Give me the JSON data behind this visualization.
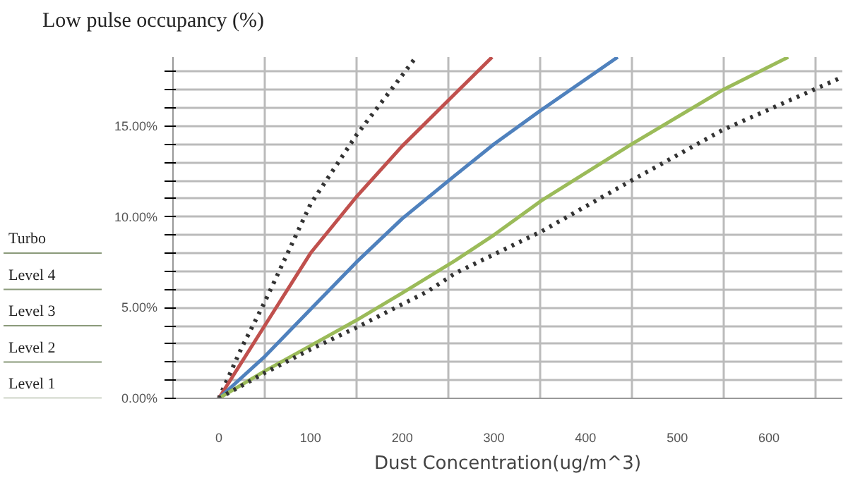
{
  "chart_data": {
    "type": "line",
    "title": "Low pulse occupancy (%)",
    "xlabel": "Dust Concentration(ug/m^3)",
    "xlim": [
      -50,
      680
    ],
    "ylim": [
      0,
      18.8
    ],
    "xticks": [
      0,
      100,
      200,
      300,
      400,
      500,
      600,
      {
        "value": 50,
        "label": null
      },
      {
        "value": 150,
        "label": null
      },
      {
        "value": 250,
        "label": null
      },
      {
        "value": 350,
        "label": null
      },
      {
        "value": 450,
        "label": null
      },
      {
        "value": 550,
        "label": null
      },
      {
        "value": 650,
        "label": null
      }
    ],
    "yticks": [
      {
        "value": 0,
        "label": "0.00%"
      },
      {
        "value": 5,
        "label": "5.00%"
      },
      {
        "value": 10,
        "label": "10.00%"
      },
      {
        "value": 15,
        "label": "15.00%"
      },
      {
        "value": 1,
        "label": null
      },
      {
        "value": 2,
        "label": null
      },
      {
        "value": 3,
        "label": null
      },
      {
        "value": 4,
        "label": null
      },
      {
        "value": 6,
        "label": null
      },
      {
        "value": 7,
        "label": null
      },
      {
        "value": 8,
        "label": null
      },
      {
        "value": 9,
        "label": null
      },
      {
        "value": 11,
        "label": null
      },
      {
        "value": 12,
        "label": null
      },
      {
        "value": 13,
        "label": null
      },
      {
        "value": 14,
        "label": null
      },
      {
        "value": 16,
        "label": null
      },
      {
        "value": 17,
        "label": null
      },
      {
        "value": 18,
        "label": null
      }
    ],
    "grid": true,
    "marker": "none",
    "ref_lines": [
      {
        "axis": "y",
        "value": 0,
        "label": "Level 1"
      },
      {
        "axis": "y",
        "value": 2,
        "label": "Level 2"
      },
      {
        "axis": "y",
        "value": 4,
        "label": "Level 3"
      },
      {
        "axis": "y",
        "value": 6,
        "label": "Level 4"
      },
      {
        "axis": "y",
        "value": 8,
        "label": "Turbo"
      }
    ],
    "series": [
      {
        "color": "#333333",
        "line_style": "dotted",
        "x": [
          0,
          25,
          50,
          100,
          150,
          200,
          215
        ],
        "values": [
          0,
          2.8,
          5.3,
          10.7,
          14.5,
          17.8,
          18.8
        ]
      },
      {
        "color": "#c0504d",
        "line_style": "solid",
        "x": [
          0,
          50,
          100,
          150,
          200,
          250,
          298
        ],
        "values": [
          0,
          4.0,
          8.0,
          11.1,
          13.9,
          16.4,
          18.8
        ]
      },
      {
        "color": "#4f81bd",
        "line_style": "solid",
        "x": [
          0,
          50,
          100,
          150,
          200,
          258,
          300,
          352,
          435
        ],
        "values": [
          0,
          2.3,
          4.9,
          7.5,
          9.9,
          12.3,
          14.0,
          15.9,
          18.8
        ]
      },
      {
        "color": "#9bbb59",
        "line_style": "solid",
        "x": [
          0,
          50,
          100,
          150,
          200,
          258,
          300,
          352,
          450,
          550,
          621
        ],
        "values": [
          0,
          1.5,
          2.9,
          4.3,
          5.8,
          7.6,
          9.0,
          10.9,
          14.0,
          17.0,
          18.8
        ]
      },
      {
        "color": "#333333",
        "line_style": "dotted",
        "x": [
          0,
          50,
          100,
          150,
          228,
          258,
          352,
          450,
          550,
          680
        ],
        "values": [
          0,
          1.4,
          2.7,
          3.9,
          5.9,
          6.9,
          9.2,
          12.0,
          14.8,
          17.7
        ]
      }
    ]
  }
}
